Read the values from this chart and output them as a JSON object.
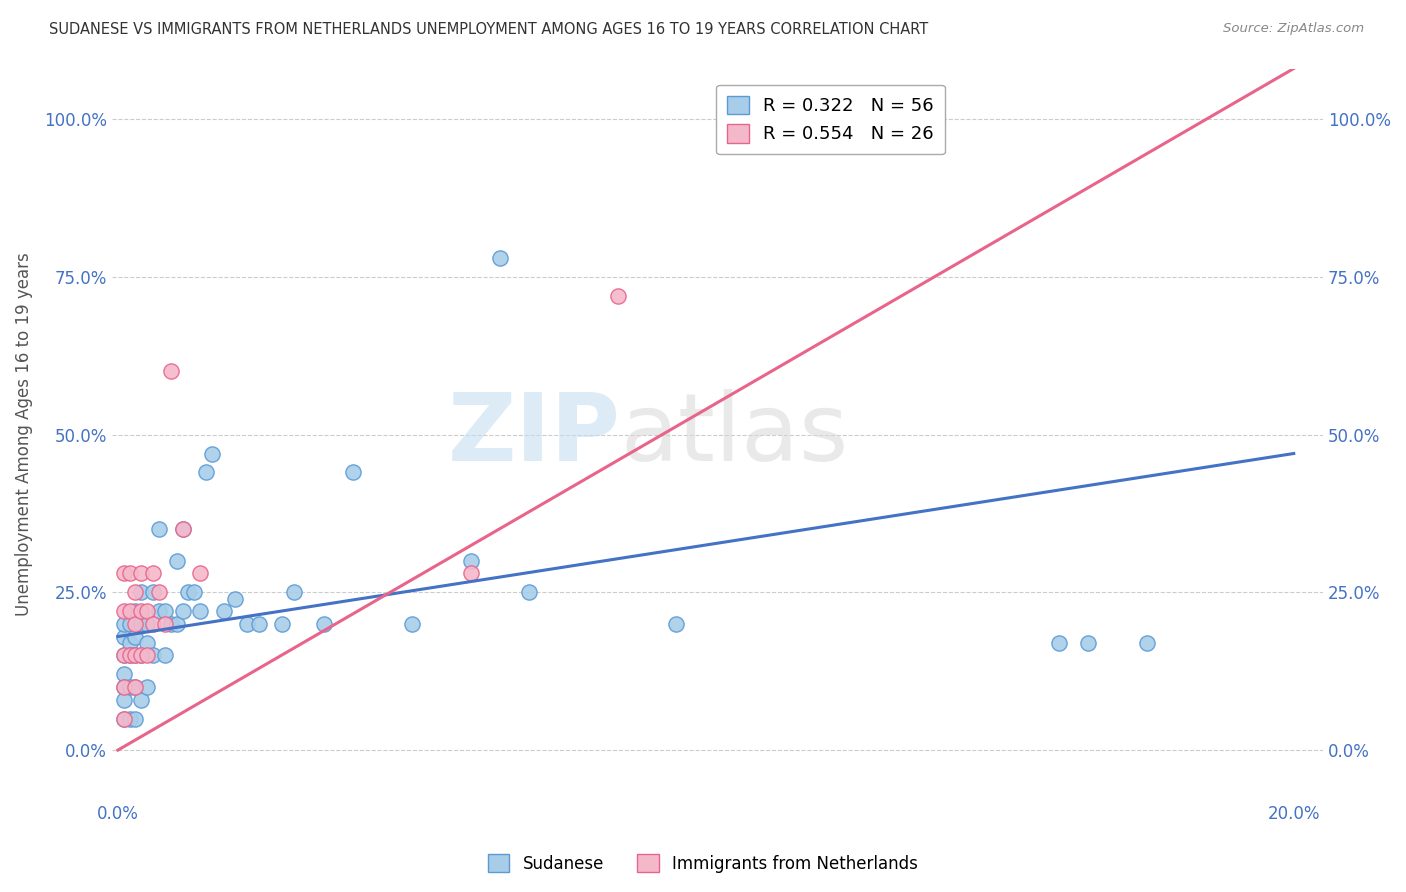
{
  "title": "SUDANESE VS IMMIGRANTS FROM NETHERLANDS UNEMPLOYMENT AMONG AGES 16 TO 19 YEARS CORRELATION CHART",
  "source": "Source: ZipAtlas.com",
  "ylabel": "Unemployment Among Ages 16 to 19 years",
  "xlim": [
    -0.001,
    0.205
  ],
  "ylim": [
    -0.08,
    1.08
  ],
  "xtick_positions": [
    0.0,
    0.02,
    0.04,
    0.06,
    0.08,
    0.1,
    0.12,
    0.14,
    0.16,
    0.18,
    0.2
  ],
  "xtick_labels": [
    "0.0%",
    "",
    "",
    "",
    "",
    "",
    "",
    "",
    "",
    "",
    "20.0%"
  ],
  "ytick_positions": [
    0.0,
    0.25,
    0.5,
    0.75,
    1.0
  ],
  "ytick_labels": [
    "0.0%",
    "25.0%",
    "50.0%",
    "75.0%",
    "100.0%"
  ],
  "blue_color": "#a8cde8",
  "blue_edge_color": "#5b9bd5",
  "pink_color": "#f4b8cb",
  "pink_edge_color": "#e8648a",
  "blue_line_color": "#4472c4",
  "pink_line_color": "#e8648a",
  "legend_line1": "R = 0.322   N = 56",
  "legend_line2": "R = 0.554   N = 26",
  "watermark_zip": "ZIP",
  "watermark_atlas": "atlas",
  "blue_regression": [
    0.0,
    0.18,
    0.2,
    0.47
  ],
  "pink_regression": [
    0.0,
    0.0,
    0.2,
    1.08
  ],
  "blue_x": [
    0.001,
    0.001,
    0.001,
    0.001,
    0.001,
    0.001,
    0.001,
    0.002,
    0.002,
    0.002,
    0.002,
    0.002,
    0.003,
    0.003,
    0.003,
    0.003,
    0.003,
    0.004,
    0.004,
    0.004,
    0.004,
    0.005,
    0.005,
    0.005,
    0.006,
    0.006,
    0.007,
    0.007,
    0.008,
    0.008,
    0.009,
    0.01,
    0.01,
    0.011,
    0.011,
    0.012,
    0.013,
    0.014,
    0.015,
    0.016,
    0.018,
    0.02,
    0.022,
    0.024,
    0.028,
    0.03,
    0.035,
    0.04,
    0.05,
    0.06,
    0.065,
    0.07,
    0.095,
    0.16,
    0.165,
    0.175
  ],
  "blue_y": [
    0.18,
    0.2,
    0.15,
    0.12,
    0.1,
    0.08,
    0.05,
    0.2,
    0.17,
    0.15,
    0.1,
    0.05,
    0.22,
    0.18,
    0.15,
    0.1,
    0.05,
    0.25,
    0.2,
    0.15,
    0.08,
    0.2,
    0.17,
    0.1,
    0.25,
    0.15,
    0.35,
    0.22,
    0.22,
    0.15,
    0.2,
    0.3,
    0.2,
    0.35,
    0.22,
    0.25,
    0.25,
    0.22,
    0.44,
    0.47,
    0.22,
    0.24,
    0.2,
    0.2,
    0.2,
    0.25,
    0.2,
    0.44,
    0.2,
    0.3,
    0.78,
    0.25,
    0.2,
    0.17,
    0.17,
    0.17
  ],
  "pink_x": [
    0.001,
    0.001,
    0.001,
    0.001,
    0.001,
    0.002,
    0.002,
    0.002,
    0.003,
    0.003,
    0.003,
    0.003,
    0.004,
    0.004,
    0.004,
    0.005,
    0.005,
    0.006,
    0.006,
    0.007,
    0.008,
    0.009,
    0.011,
    0.014,
    0.06,
    0.085
  ],
  "pink_y": [
    0.28,
    0.22,
    0.15,
    0.1,
    0.05,
    0.28,
    0.22,
    0.15,
    0.25,
    0.2,
    0.15,
    0.1,
    0.28,
    0.22,
    0.15,
    0.22,
    0.15,
    0.28,
    0.2,
    0.25,
    0.2,
    0.6,
    0.35,
    0.28,
    0.28,
    0.72
  ]
}
